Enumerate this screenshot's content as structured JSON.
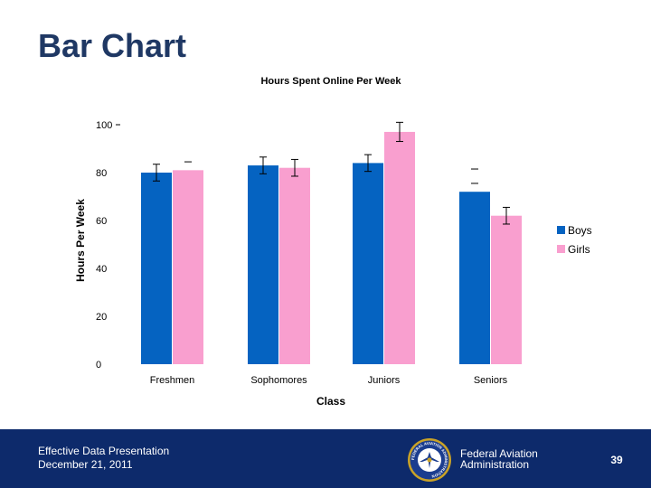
{
  "slide": {
    "title": "Bar Chart",
    "page_number": "39"
  },
  "footer": {
    "presentation_title": "Effective Data Presentation",
    "date": "December 21, 2011",
    "org_line1": "Federal Aviation",
    "org_line2": "Administration",
    "seal_text": "FEDERAL AVIATION ADMINISTRATION"
  },
  "colors": {
    "boys": "#0563c1",
    "girls": "#f99fcf",
    "title_blue": "#1f3864",
    "footer_bg": "#0d2a6b"
  },
  "chart_data": {
    "type": "bar",
    "title": "Hours Spent Online Per Week",
    "xlabel": "Class",
    "ylabel": "Hours Per Week",
    "categories": [
      "Freshmen",
      "Sophomores",
      "Juniors",
      "Seniors"
    ],
    "series": [
      {
        "name": "Boys",
        "values": [
          80,
          83,
          84,
          72
        ],
        "errors": [
          3.5,
          3.5,
          3.5,
          null
        ]
      },
      {
        "name": "Girls",
        "values": [
          81,
          82,
          97,
          62
        ],
        "errors": [
          null,
          3.5,
          4,
          3.5
        ]
      }
    ],
    "ylim": [
      0,
      100
    ],
    "yticks": [
      0,
      20,
      40,
      60,
      80,
      100
    ],
    "legend_position": "right"
  }
}
